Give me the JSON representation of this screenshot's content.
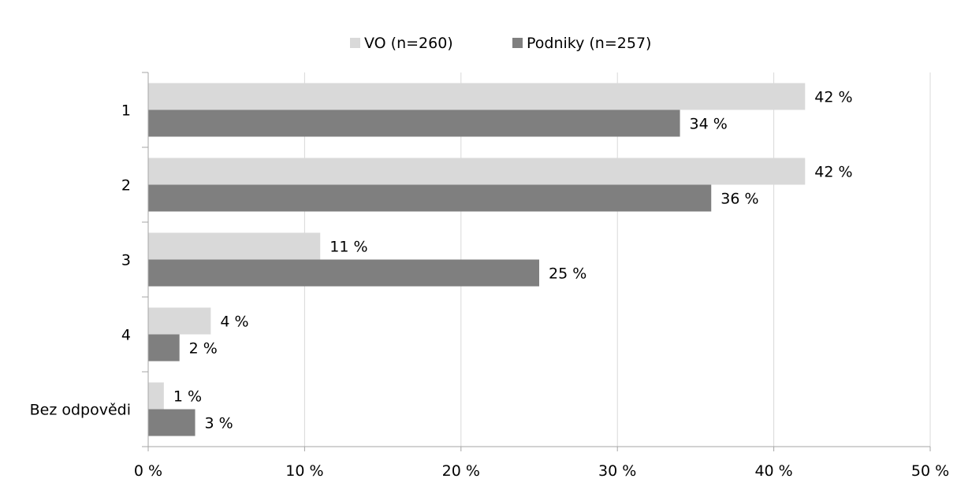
{
  "chart_data": {
    "type": "bar",
    "orientation": "horizontal",
    "categories": [
      "1",
      "2",
      "3",
      "4",
      "Bez odpovědi"
    ],
    "series": [
      {
        "name": "VO (n=260)",
        "color": "#d9d9d9",
        "values": [
          42,
          42,
          11,
          4,
          1
        ],
        "labels": [
          "42 %",
          "42 %",
          "11 %",
          "4 %",
          "1 %"
        ]
      },
      {
        "name": "Podniky (n=257)",
        "color": "#7f7f7f",
        "values": [
          34,
          36,
          25,
          2,
          3
        ],
        "labels": [
          "34 %",
          "36 %",
          "25 %",
          "2 %",
          "3 %"
        ]
      }
    ],
    "xlim": [
      0,
      50
    ],
    "xticks": [
      0,
      10,
      20,
      30,
      40,
      50
    ],
    "xtick_labels": [
      "0 %",
      "10 %",
      "20 %",
      "30 %",
      "40 %",
      "50 %"
    ],
    "grid": "vertical",
    "legend_position": "top",
    "title": "",
    "xlabel": "",
    "ylabel": ""
  }
}
